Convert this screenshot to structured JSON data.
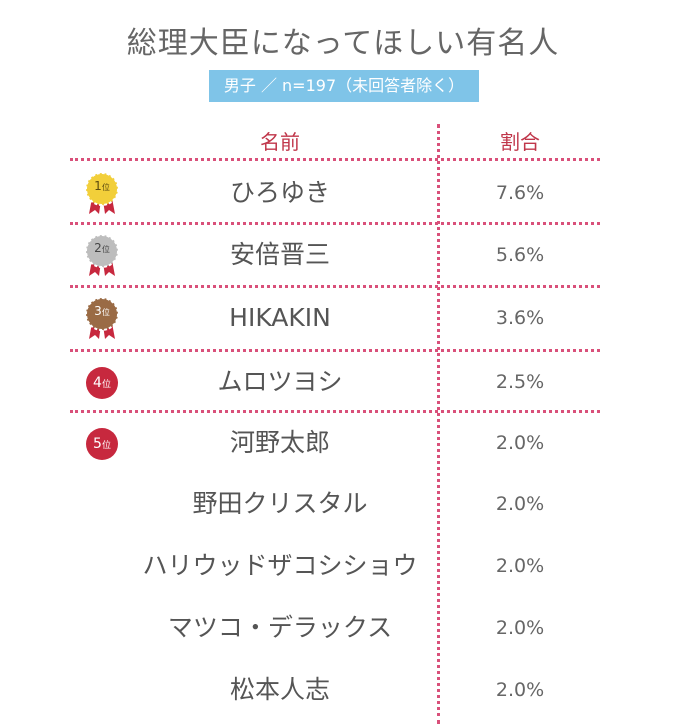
{
  "title": "総理大臣になってほしい有名人",
  "subtitle": "男子 ／ n=197（未回答者除く）",
  "headers": {
    "name": "名前",
    "percent": "割合"
  },
  "rank_suffix": "位",
  "colors": {
    "accent": "#c0364a",
    "dots": "#d9507a",
    "subtitle_bg": "#7fc4e8",
    "gold": "#f2cf3a",
    "silver": "#bdbdbd",
    "bronze": "#9a6b45",
    "red_badge": "#c7283e"
  },
  "rows": [
    {
      "rank": "1",
      "name": "ひろゆき",
      "percent": "7.6%",
      "medal": "gold"
    },
    {
      "rank": "2",
      "name": "安倍晋三",
      "percent": "5.6%",
      "medal": "silver"
    },
    {
      "rank": "3",
      "name": "HIKAKIN",
      "percent": "3.6%",
      "medal": "bronze"
    },
    {
      "rank": "4",
      "name": "ムロツヨシ",
      "percent": "2.5%",
      "medal": "red"
    },
    {
      "rank": "5",
      "name": "河野太郎",
      "percent": "2.0%",
      "medal": "red"
    },
    {
      "rank": "",
      "name": "野田クリスタル",
      "percent": "2.0%",
      "medal": ""
    },
    {
      "rank": "",
      "name": "ハリウッドザコシショウ",
      "percent": "2.0%",
      "medal": ""
    },
    {
      "rank": "",
      "name": "マツコ・デラックス",
      "percent": "2.0%",
      "medal": ""
    },
    {
      "rank": "",
      "name": "松本人志",
      "percent": "2.0%",
      "medal": ""
    }
  ]
}
